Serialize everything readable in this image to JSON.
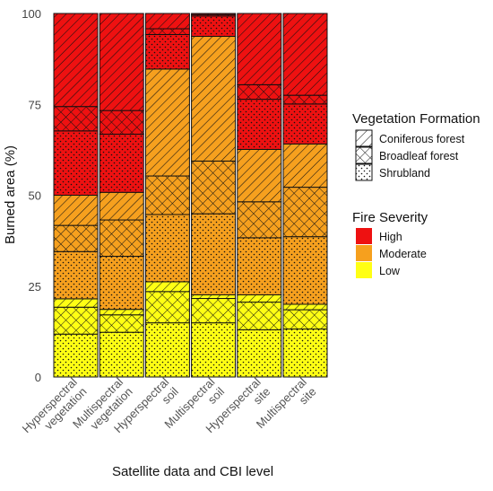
{
  "chart_data": {
    "type": "bar",
    "stacked": true,
    "xlabel": "Satellite data and CBI level",
    "ylabel": "Burned area (%)",
    "ylim": [
      0,
      100
    ],
    "yticks": [
      0,
      25,
      50,
      75,
      100
    ],
    "grid": false,
    "categories": [
      [
        "Hyperspectral",
        "vegetation"
      ],
      [
        "Multispectral",
        "vegetation"
      ],
      [
        "Hyperspectral",
        "soil"
      ],
      [
        "Multispectral",
        "soil"
      ],
      [
        "Hyperspectral",
        "site"
      ],
      [
        "Multispectral",
        "site"
      ]
    ],
    "stack_order": [
      "Low · Shrubland",
      "Low · Broadleaf forest",
      "Low · Coniferous forest",
      "Moderate · Shrubland",
      "Moderate · Broadleaf forest",
      "Moderate · Coniferous forest",
      "High · Shrubland",
      "High · Broadleaf forest",
      "High · Coniferous forest"
    ],
    "series": [
      {
        "severity": "Low",
        "formation": "Shrubland",
        "values": [
          11.8,
          12.3,
          14.9,
          14.9,
          13.0,
          13.2
        ]
      },
      {
        "severity": "Low",
        "formation": "Broadleaf forest",
        "values": [
          7.4,
          4.8,
          8.6,
          6.7,
          7.6,
          5.3
        ]
      },
      {
        "severity": "Low",
        "formation": "Coniferous forest",
        "values": [
          2.3,
          1.5,
          2.7,
          1.0,
          2.0,
          1.5
        ]
      },
      {
        "severity": "Moderate",
        "formation": "Shrubland",
        "values": [
          13.0,
          14.6,
          18.5,
          22.3,
          15.7,
          18.6
        ]
      },
      {
        "severity": "Moderate",
        "formation": "Broadleaf forest",
        "values": [
          7.2,
          10.0,
          10.6,
          14.5,
          9.9,
          13.6
        ]
      },
      {
        "severity": "Moderate",
        "formation": "Coniferous forest",
        "values": [
          8.3,
          7.6,
          29.4,
          34.3,
          14.4,
          11.9
        ]
      },
      {
        "severity": "High",
        "formation": "Shrubland",
        "values": [
          17.7,
          16.0,
          9.5,
          5.6,
          13.8,
          11.0
        ]
      },
      {
        "severity": "High",
        "formation": "Broadleaf forest",
        "values": [
          6.7,
          6.5,
          1.6,
          0.4,
          4.0,
          2.4
        ]
      },
      {
        "severity": "High",
        "formation": "Coniferous forest",
        "values": [
          25.6,
          26.7,
          4.2,
          0.3,
          19.6,
          22.5
        ]
      }
    ],
    "legend": {
      "placement": "right",
      "groups": [
        {
          "title": "Vegetation Formation",
          "kind": "pattern",
          "items": [
            "Coniferous forest",
            "Broadleaf forest",
            "Shrubland"
          ]
        },
        {
          "title": "Fire Severity",
          "kind": "color",
          "items": [
            "High",
            "Moderate",
            "Low"
          ]
        }
      ]
    },
    "colors": {
      "High": "#ee1111",
      "Moderate": "#f6a01e",
      "Low": "#ffff14",
      "outline": "#111111"
    }
  }
}
